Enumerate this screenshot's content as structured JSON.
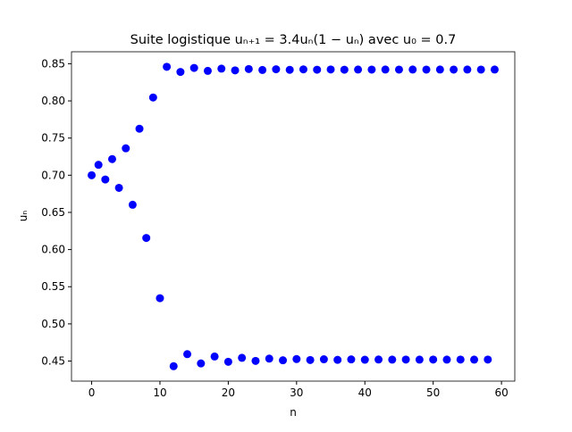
{
  "chart_data": {
    "type": "scatter",
    "title": "Suite logistique uₙ₊₁ = 3.4uₙ(1 − uₙ) avec u₀ = 0.7",
    "xlabel": "n",
    "ylabel": "uₙ",
    "series": [
      {
        "name": "uₙ",
        "color": "#0000ff",
        "x": [
          0,
          1,
          2,
          3,
          4,
          5,
          6,
          7,
          8,
          9,
          10,
          11,
          12,
          13,
          14,
          15,
          16,
          17,
          18,
          19,
          20,
          21,
          22,
          23,
          24,
          25,
          26,
          27,
          28,
          29,
          30,
          31,
          32,
          33,
          34,
          35,
          36,
          37,
          38,
          39,
          40,
          41,
          42,
          43,
          44,
          45,
          46,
          47,
          48,
          49,
          50,
          51,
          52,
          53,
          54,
          55,
          56,
          57,
          58,
          59
        ],
        "values": [
          0.7,
          0.714,
          0.6943,
          0.7217,
          0.683,
          0.7362,
          0.6603,
          0.7626,
          0.6156,
          0.8046,
          0.5346,
          0.8459,
          0.4431,
          0.839,
          0.4593,
          0.8444,
          0.4468,
          0.8404,
          0.4561,
          0.8434,
          0.449,
          0.8411,
          0.4543,
          0.8429,
          0.4502,
          0.8416,
          0.4533,
          0.8426,
          0.451,
          0.8418,
          0.4527,
          0.8424,
          0.4514,
          0.842,
          0.4524,
          0.8423,
          0.4516,
          0.842,
          0.4522,
          0.8422,
          0.4518,
          0.8421,
          0.4521,
          0.8422,
          0.4519,
          0.8421,
          0.452,
          0.8422,
          0.4519,
          0.8421,
          0.452,
          0.8422,
          0.4519,
          0.8421,
          0.452,
          0.8422,
          0.4519,
          0.8421,
          0.452,
          0.8422
        ]
      }
    ],
    "xlim": [
      -2.95,
      61.95
    ],
    "ylim": [
      0.423,
      0.8661
    ],
    "xticks": [
      0,
      10,
      20,
      30,
      40,
      50,
      60
    ],
    "yticks": [
      0.45,
      {
        "value": 0.5,
        "label": "0.50"
      },
      0.55,
      {
        "value": 0.6,
        "label": "0.60"
      },
      0.65,
      {
        "value": 0.7,
        "label": "0.70"
      },
      0.75,
      {
        "value": 0.8,
        "label": "0.80"
      },
      0.85
    ],
    "grid": false
  }
}
